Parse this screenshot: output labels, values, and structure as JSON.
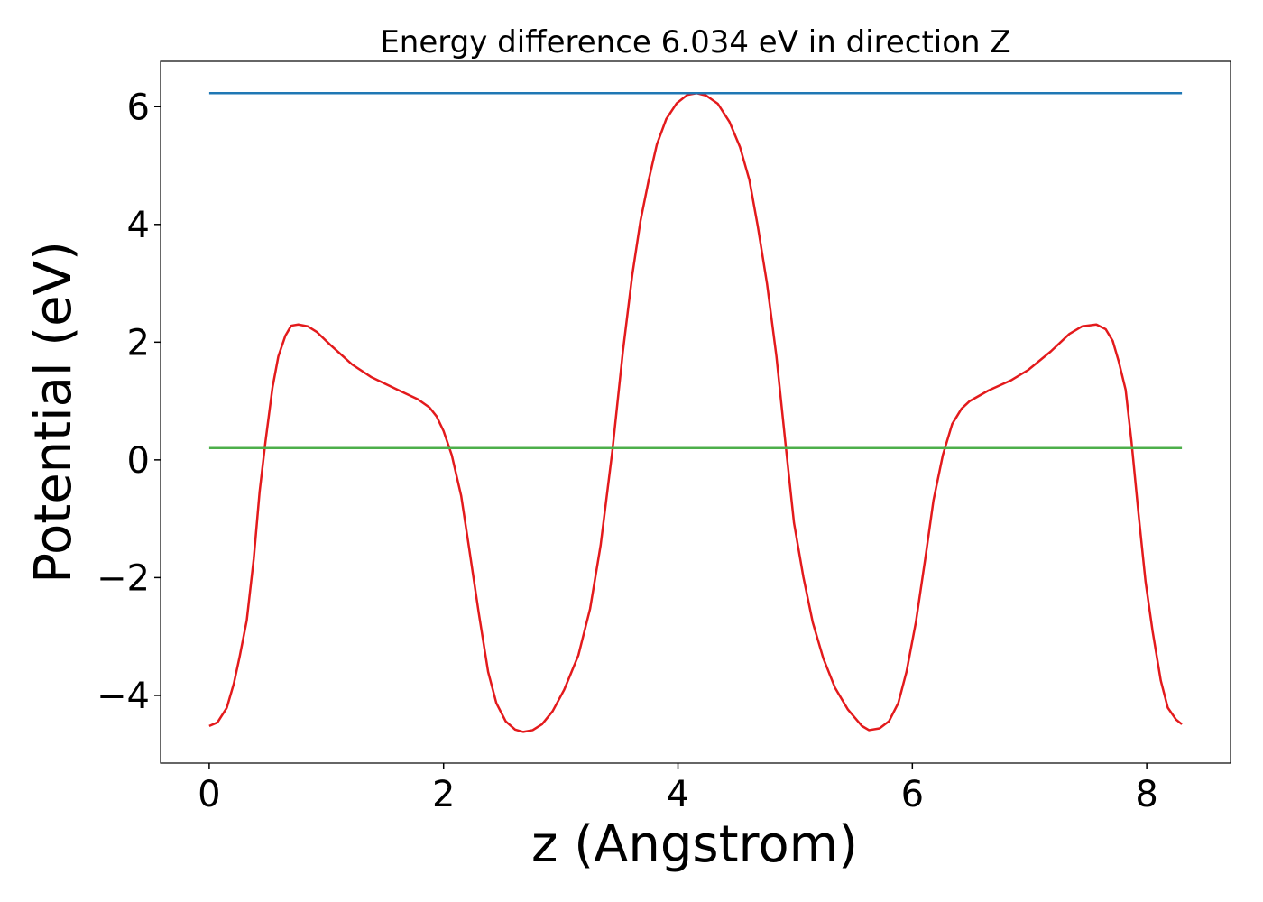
{
  "chart_data": {
    "type": "line",
    "title": "Energy difference 6.034 eV in direction Z",
    "xlabel": "z (Angstrom)",
    "ylabel": "Potential (eV)",
    "xlim": [
      -0.415,
      8.715
    ],
    "ylim": [
      -5.15,
      6.77
    ],
    "xticks": [
      0,
      2,
      4,
      6,
      8
    ],
    "yticks": [
      {
        "value": -4,
        "label": "−4"
      },
      {
        "value": -2,
        "label": "−2"
      },
      0,
      2,
      4,
      6
    ],
    "series": [
      {
        "color": "#e31a1c",
        "x": [
          0,
          0.07,
          0.15,
          0.21,
          0.26,
          0.32,
          0.38,
          0.43,
          0.48,
          0.54,
          0.59,
          0.65,
          0.7,
          0.76,
          0.84,
          0.92,
          1.03,
          1.22,
          1.38,
          1.61,
          1.78,
          1.88,
          1.94,
          2.0,
          2.07,
          2.15,
          2.22,
          2.3,
          2.38,
          2.45,
          2.53,
          2.61,
          2.68,
          2.76,
          2.84,
          2.93,
          3.03,
          3.15,
          3.25,
          3.34,
          3.44,
          3.53,
          3.61,
          3.68,
          3.75,
          3.82,
          3.9,
          3.99,
          4.08,
          4.16,
          4.24,
          4.34,
          4.44,
          4.53,
          4.61,
          4.68,
          4.76,
          4.84,
          4.92,
          4.99,
          5.07,
          5.15,
          5.24,
          5.34,
          5.45,
          5.57,
          5.63,
          5.72,
          5.8,
          5.88,
          5.95,
          6.03,
          6.11,
          6.18,
          6.26,
          6.34,
          6.42,
          6.49,
          6.65,
          6.84,
          6.99,
          7.18,
          7.34,
          7.45,
          7.57,
          7.65,
          7.71,
          7.76,
          7.82,
          7.87,
          7.93,
          7.99,
          8.05,
          8.12,
          8.18,
          8.25,
          8.3
        ],
        "values": [
          -4.52,
          -4.46,
          -4.21,
          -3.8,
          -3.34,
          -2.73,
          -1.68,
          -0.54,
          0.31,
          1.23,
          1.76,
          2.11,
          2.28,
          2.3,
          2.27,
          2.17,
          1.96,
          1.62,
          1.41,
          1.19,
          1.03,
          0.89,
          0.74,
          0.49,
          0.08,
          -0.61,
          -1.53,
          -2.6,
          -3.6,
          -4.13,
          -4.44,
          -4.58,
          -4.62,
          -4.59,
          -4.49,
          -4.27,
          -3.9,
          -3.32,
          -2.53,
          -1.45,
          0.15,
          1.84,
          3.14,
          4.06,
          4.75,
          5.36,
          5.79,
          6.06,
          6.2,
          6.23,
          6.19,
          6.05,
          5.74,
          5.31,
          4.75,
          3.98,
          2.99,
          1.76,
          0.23,
          -1.07,
          -1.99,
          -2.76,
          -3.37,
          -3.87,
          -4.24,
          -4.52,
          -4.59,
          -4.56,
          -4.44,
          -4.13,
          -3.6,
          -2.76,
          -1.68,
          -0.69,
          0.08,
          0.61,
          0.87,
          1.0,
          1.18,
          1.35,
          1.53,
          1.84,
          2.14,
          2.27,
          2.3,
          2.22,
          2.02,
          1.68,
          1.19,
          0.31,
          -0.92,
          -2.07,
          -2.91,
          -3.75,
          -4.21,
          -4.41,
          -4.49
        ]
      },
      {
        "color": "#1f77b4",
        "x": [
          0,
          8.3
        ],
        "values": [
          6.23,
          6.23
        ]
      },
      {
        "color": "#4daf4a",
        "x": [
          0,
          8.3
        ],
        "values": [
          0.2,
          0.2
        ]
      }
    ]
  }
}
